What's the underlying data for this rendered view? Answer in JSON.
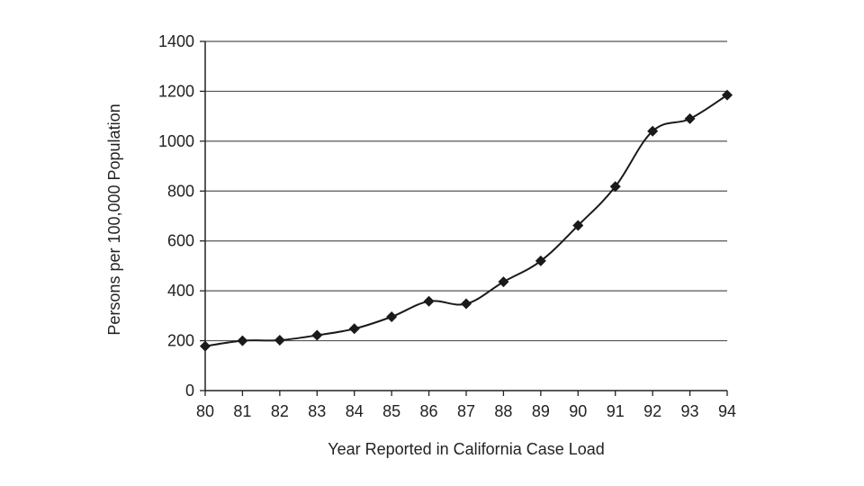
{
  "chart_data": {
    "type": "line",
    "title": "",
    "xlabel": "Year Reported in California Case Load",
    "ylabel": "Persons per 100,000 Population",
    "x": [
      80,
      81,
      82,
      83,
      84,
      85,
      86,
      87,
      88,
      89,
      90,
      91,
      92,
      93,
      94
    ],
    "x_tick_labels": [
      "80",
      "81",
      "82",
      "83",
      "84",
      "85",
      "86",
      "87",
      "88",
      "89",
      "90",
      "91",
      "92",
      "93",
      "94"
    ],
    "y_ticks": [
      0,
      200,
      400,
      600,
      800,
      1000,
      1200,
      1400
    ],
    "y_tick_labels": [
      "0",
      "200",
      "400",
      "600",
      "800",
      "1000",
      "1200",
      "1400"
    ],
    "xlim": [
      80,
      94
    ],
    "ylim": [
      0,
      1400
    ],
    "grid": "horizontal",
    "legend": "none",
    "marker": "diamond",
    "series": [
      {
        "values": [
          178,
          200,
          202,
          222,
          248,
          296,
          358,
          348,
          436,
          520,
          662,
          818,
          1040,
          1090,
          1185
        ]
      }
    ],
    "colors": {
      "line": "#1a1a1a",
      "grid": "#555555",
      "axis": "#222222"
    }
  }
}
